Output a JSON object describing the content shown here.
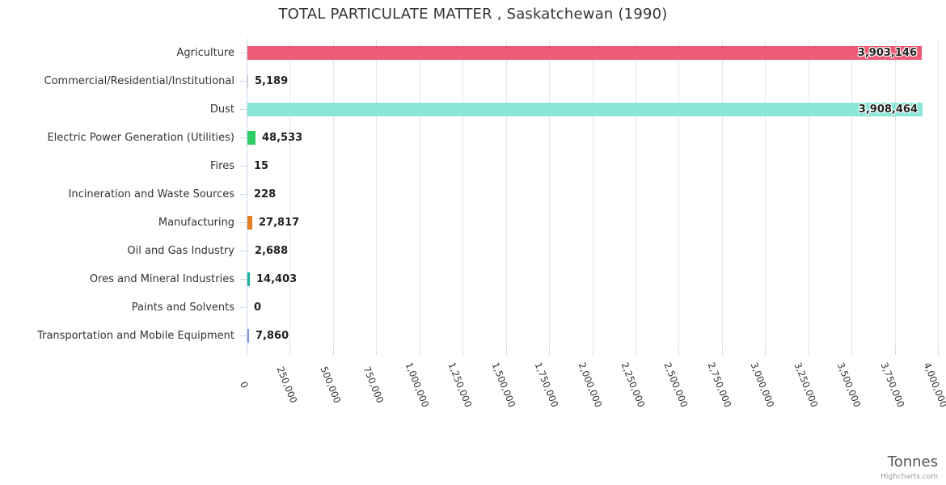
{
  "chart_data": {
    "type": "bar",
    "title": "TOTAL PARTICULATE MATTER , Saskatchewan (1990)",
    "xlabel": "Tonnes",
    "categories": [
      "Agriculture",
      "Commercial/Residential/Institutional",
      "Dust",
      "Electric Power Generation (Utilities)",
      "Fires",
      "Incineration and Waste Sources",
      "Manufacturing",
      "Oil and Gas Industry",
      "Ores and Mineral Industries",
      "Paints and Solvents",
      "Transportation and Mobile Equipment"
    ],
    "values": [
      3903146,
      5189,
      3908464,
      48533,
      15,
      228,
      27817,
      2688,
      14403,
      0,
      7860
    ],
    "value_labels": [
      "3,903,146",
      "5,189",
      "3,908,464",
      "48,533",
      "15",
      "228",
      "27,817",
      "2,688",
      "14,403",
      "0",
      "7,860"
    ],
    "bar_colors": [
      "#ed5b77",
      "#cccccc",
      "#8ae6d9",
      "#2ecc65",
      "#cccccc",
      "#cccccc",
      "#e67f23",
      "#cccccc",
      "#17b3a0",
      "#cccccc",
      "#8293e0"
    ],
    "xlim": [
      0,
      4000000
    ],
    "tick_interval": 250000,
    "tick_labels": [
      "0",
      "250,000",
      "500,000",
      "750,000",
      "1,000,000",
      "1,250,000",
      "1,500,000",
      "1,750,000",
      "2,000,000",
      "2,250,000",
      "2,500,000",
      "2,750,000",
      "3,000,000",
      "3,250,000",
      "3,500,000",
      "3,750,000",
      "4,000,000"
    ],
    "grid": true,
    "legend": false,
    "credit": "Highcharts.com"
  }
}
